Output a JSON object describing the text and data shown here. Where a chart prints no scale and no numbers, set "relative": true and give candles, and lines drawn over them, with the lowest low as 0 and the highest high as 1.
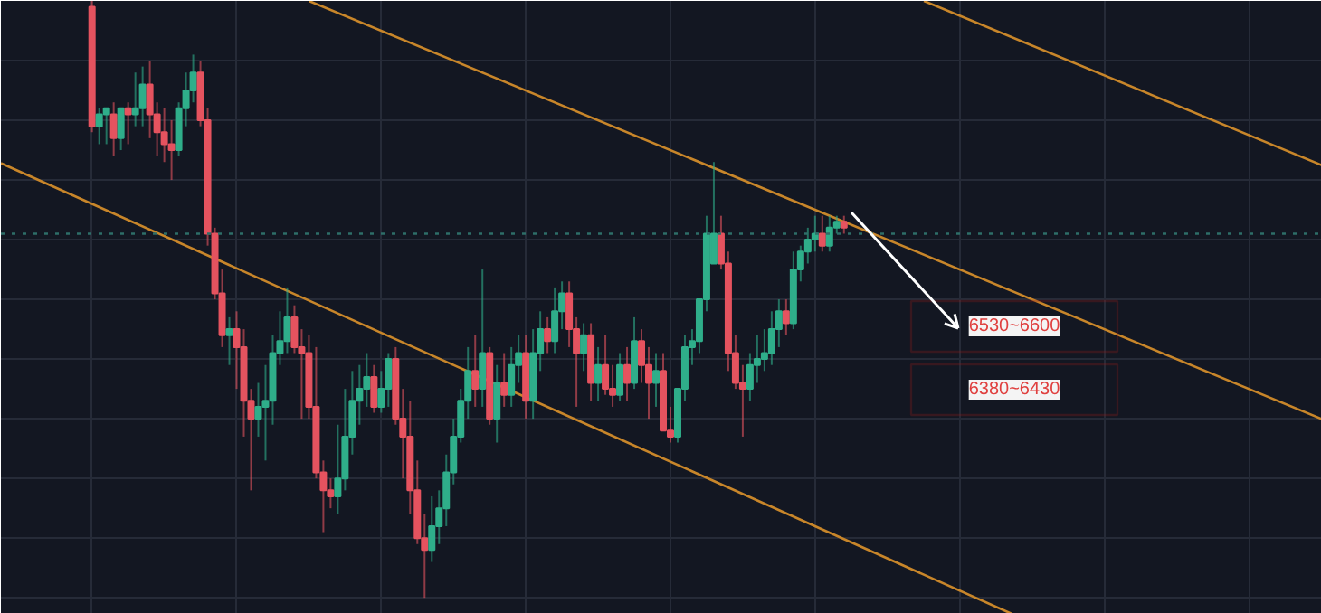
{
  "chart_data": {
    "type": "candlestick",
    "relative": true,
    "grid": true,
    "tick_labels": false,
    "categories": [
      null,
      null,
      null,
      null,
      null,
      null,
      null,
      null,
      null,
      null,
      null,
      null,
      null,
      null,
      null,
      null,
      null,
      null,
      null,
      null,
      null,
      null,
      null,
      null,
      null,
      null,
      null,
      null,
      null,
      null,
      null,
      null,
      null,
      null,
      null,
      null,
      null,
      null,
      null,
      null,
      null,
      null,
      null,
      null,
      null,
      null,
      null,
      null,
      null,
      null,
      null,
      null,
      null,
      null,
      null,
      null,
      null,
      null,
      null,
      null,
      null,
      null,
      null,
      null,
      null,
      null,
      null,
      null,
      null,
      null,
      null,
      null,
      null,
      null,
      null,
      null,
      null,
      null,
      null,
      null,
      null,
      null,
      null,
      null,
      null,
      null,
      null,
      null,
      null,
      null,
      null,
      null,
      null,
      null,
      null,
      null,
      null,
      null,
      null,
      null,
      null,
      null,
      null,
      null,
      null
    ],
    "ohlc": [
      [
        0.99,
        1,
        0.78,
        0.79
      ],
      [
        0.79,
        0.82,
        0.76,
        0.81
      ],
      [
        0.81,
        0.82,
        0.76,
        0.82
      ],
      [
        0.81,
        0.83,
        0.74,
        0.77
      ],
      [
        0.77,
        0.82,
        0.75,
        0.82
      ],
      [
        0.82,
        0.83,
        0.76,
        0.81
      ],
      [
        0.81,
        0.88,
        0.79,
        0.82
      ],
      [
        0.82,
        0.89,
        0.79,
        0.86
      ],
      [
        0.86,
        0.9,
        0.77,
        0.81
      ],
      [
        0.81,
        0.83,
        0.74,
        0.78
      ],
      [
        0.78,
        0.82,
        0.73,
        0.76
      ],
      [
        0.76,
        0.8,
        0.7,
        0.75
      ],
      [
        0.75,
        0.83,
        0.74,
        0.82
      ],
      [
        0.82,
        0.88,
        0.79,
        0.85
      ],
      [
        0.85,
        0.91,
        0.83,
        0.88
      ],
      [
        0.88,
        0.9,
        0.79,
        0.8
      ],
      [
        0.8,
        0.82,
        0.59,
        0.61
      ],
      [
        0.61,
        0.62,
        0.5,
        0.51
      ],
      [
        0.51,
        0.55,
        0.42,
        0.44
      ],
      [
        0.44,
        0.47,
        0.39,
        0.45
      ],
      [
        0.45,
        0.48,
        0.35,
        0.42
      ],
      [
        0.42,
        0.45,
        0.27,
        0.33
      ],
      [
        0.33,
        0.35,
        0.18,
        0.3
      ],
      [
        0.3,
        0.36,
        0.27,
        0.32
      ],
      [
        0.32,
        0.39,
        0.23,
        0.33
      ],
      [
        0.33,
        0.44,
        0.29,
        0.41
      ],
      [
        0.41,
        0.48,
        0.39,
        0.43
      ],
      [
        0.43,
        0.52,
        0.41,
        0.47
      ],
      [
        0.47,
        0.49,
        0.41,
        0.42
      ],
      [
        0.42,
        0.45,
        0.3,
        0.41
      ],
      [
        0.41,
        0.44,
        0.3,
        0.32
      ],
      [
        0.32,
        0.42,
        0.2,
        0.21
      ],
      [
        0.21,
        0.23,
        0.11,
        0.18
      ],
      [
        0.18,
        0.2,
        0.15,
        0.17
      ],
      [
        0.17,
        0.29,
        0.14,
        0.2
      ],
      [
        0.2,
        0.35,
        0.18,
        0.27
      ],
      [
        0.27,
        0.38,
        0.24,
        0.33
      ],
      [
        0.33,
        0.39,
        0.29,
        0.35
      ],
      [
        0.35,
        0.41,
        0.32,
        0.37
      ],
      [
        0.37,
        0.39,
        0.31,
        0.32
      ],
      [
        0.32,
        0.38,
        0.31,
        0.35
      ],
      [
        0.35,
        0.41,
        0.32,
        0.4
      ],
      [
        0.4,
        0.42,
        0.29,
        0.3
      ],
      [
        0.3,
        0.35,
        0.2,
        0.27
      ],
      [
        0.27,
        0.33,
        0.14,
        0.18
      ],
      [
        0.18,
        0.23,
        0.09,
        0.1
      ],
      [
        0.1,
        0.14,
        0,
        0.08
      ],
      [
        0.08,
        0.17,
        0.06,
        0.12
      ],
      [
        0.12,
        0.18,
        0.09,
        0.15
      ],
      [
        0.15,
        0.24,
        0.12,
        0.21
      ],
      [
        0.21,
        0.3,
        0.19,
        0.27
      ],
      [
        0.27,
        0.35,
        0.26,
        0.33
      ],
      [
        0.33,
        0.42,
        0.3,
        0.38
      ],
      [
        0.38,
        0.44,
        0.32,
        0.35
      ],
      [
        0.35,
        0.55,
        0.32,
        0.41
      ],
      [
        0.41,
        0.42,
        0.29,
        0.3
      ],
      [
        0.3,
        0.39,
        0.26,
        0.36
      ],
      [
        0.36,
        0.41,
        0.32,
        0.34
      ],
      [
        0.34,
        0.42,
        0.32,
        0.39
      ],
      [
        0.39,
        0.44,
        0.36,
        0.41
      ],
      [
        0.41,
        0.44,
        0.3,
        0.33
      ],
      [
        0.33,
        0.45,
        0.3,
        0.41
      ],
      [
        0.41,
        0.48,
        0.38,
        0.45
      ],
      [
        0.45,
        0.47,
        0.41,
        0.43
      ],
      [
        0.43,
        0.52,
        0.41,
        0.48
      ],
      [
        0.48,
        0.53,
        0.45,
        0.51
      ],
      [
        0.51,
        0.53,
        0.42,
        0.45
      ],
      [
        0.45,
        0.47,
        0.32,
        0.41
      ],
      [
        0.41,
        0.46,
        0.38,
        0.44
      ],
      [
        0.44,
        0.46,
        0.33,
        0.36
      ],
      [
        0.36,
        0.42,
        0.33,
        0.39
      ],
      [
        0.39,
        0.44,
        0.34,
        0.35
      ],
      [
        0.35,
        0.39,
        0.32,
        0.34
      ],
      [
        0.34,
        0.41,
        0.33,
        0.39
      ],
      [
        0.39,
        0.42,
        0.33,
        0.36
      ],
      [
        0.36,
        0.47,
        0.35,
        0.43
      ],
      [
        0.43,
        0.45,
        0.36,
        0.39
      ],
      [
        0.39,
        0.42,
        0.3,
        0.36
      ],
      [
        0.36,
        0.41,
        0.32,
        0.38
      ],
      [
        0.38,
        0.41,
        0.28,
        0.28
      ],
      [
        0.28,
        0.32,
        0.26,
        0.27
      ],
      [
        0.27,
        0.35,
        0.26,
        0.35
      ],
      [
        0.35,
        0.44,
        0.33,
        0.42
      ],
      [
        0.42,
        0.45,
        0.39,
        0.43
      ],
      [
        0.43,
        0.5,
        0.41,
        0.5
      ],
      [
        0.5,
        0.64,
        0.48,
        0.61
      ],
      [
        0.56,
        0.73,
        0.56,
        0.61
      ],
      [
        0.61,
        0.64,
        0.55,
        0.56
      ],
      [
        0.56,
        0.58,
        0.38,
        0.41
      ],
      [
        0.41,
        0.44,
        0.35,
        0.36
      ],
      [
        0.36,
        0.39,
        0.27,
        0.35
      ],
      [
        0.35,
        0.41,
        0.33,
        0.39
      ],
      [
        0.39,
        0.44,
        0.36,
        0.4
      ],
      [
        0.4,
        0.45,
        0.38,
        0.41
      ],
      [
        0.41,
        0.48,
        0.39,
        0.45
      ],
      [
        0.45,
        0.5,
        0.42,
        0.48
      ],
      [
        0.48,
        0.5,
        0.44,
        0.46
      ],
      [
        0.46,
        0.58,
        0.45,
        0.55
      ],
      [
        0.55,
        0.59,
        0.53,
        0.58
      ],
      [
        0.58,
        0.62,
        0.56,
        0.6
      ],
      [
        0.6,
        0.64,
        0.58,
        0.61
      ],
      [
        0.61,
        0.64,
        0.58,
        0.59
      ],
      [
        0.59,
        0.64,
        0.58,
        0.62
      ],
      [
        0.62,
        0.64,
        0.61,
        0.63
      ],
      [
        0.63,
        0.64,
        0.61,
        0.62
      ]
    ],
    "series": [
      {
        "type": "line",
        "color": "#c8862a",
        "values": [
          null,
          null,
          null,
          null,
          null,
          null,
          null,
          null,
          null,
          null,
          null,
          null,
          null,
          null,
          null,
          null,
          null,
          null,
          null,
          null,
          null,
          null,
          null,
          null,
          null,
          null,
          null,
          null,
          null,
          null,
          1.0,
          null,
          null,
          null,
          null,
          null,
          null,
          null,
          null,
          null,
          null,
          null,
          null,
          null,
          null,
          null,
          null,
          null,
          null,
          null,
          null,
          null,
          null,
          null,
          null,
          null,
          null,
          null,
          null,
          null,
          null,
          null,
          null,
          null,
          null,
          null,
          null,
          null,
          null,
          null,
          null,
          null,
          null,
          null,
          null,
          null,
          null,
          null,
          null,
          null,
          null,
          null,
          null,
          null,
          null,
          null,
          null,
          null,
          null,
          null,
          null,
          null,
          null,
          null,
          null,
          null,
          null,
          null,
          null,
          null,
          0.65,
          null,
          null,
          null,
          null
        ]
      },
      {
        "type": "line",
        "color": "#c8862a",
        "values": [
          0.66,
          null,
          null,
          null,
          null,
          null,
          null,
          null,
          null,
          null,
          null,
          null,
          null,
          null,
          null,
          null,
          null,
          null,
          null,
          null,
          null,
          null,
          null,
          null,
          null,
          null,
          null,
          null,
          null,
          null,
          null,
          null,
          null,
          null,
          null,
          null,
          null,
          null,
          null,
          null,
          null,
          null,
          null,
          null,
          null,
          null,
          null,
          null,
          null,
          null,
          null,
          null,
          null,
          null,
          null,
          null,
          null,
          null,
          null,
          null,
          null,
          null,
          null,
          null,
          null,
          null,
          null,
          null,
          null,
          null,
          null,
          null,
          null,
          null,
          null,
          null,
          null,
          null,
          null,
          null,
          null,
          null,
          null,
          null,
          null,
          null,
          null,
          null,
          null,
          null,
          null,
          null,
          null,
          null,
          null,
          null,
          null,
          null,
          null,
          null,
          0.12,
          null,
          null,
          null,
          null
        ]
      }
    ],
    "ref_lines": [
      {
        "axis": "y",
        "value": 0.61,
        "color": "#2e6e68",
        "line_style": "dotted"
      }
    ],
    "annotations": [
      "6530~6600",
      "6380~6430"
    ]
  }
}
